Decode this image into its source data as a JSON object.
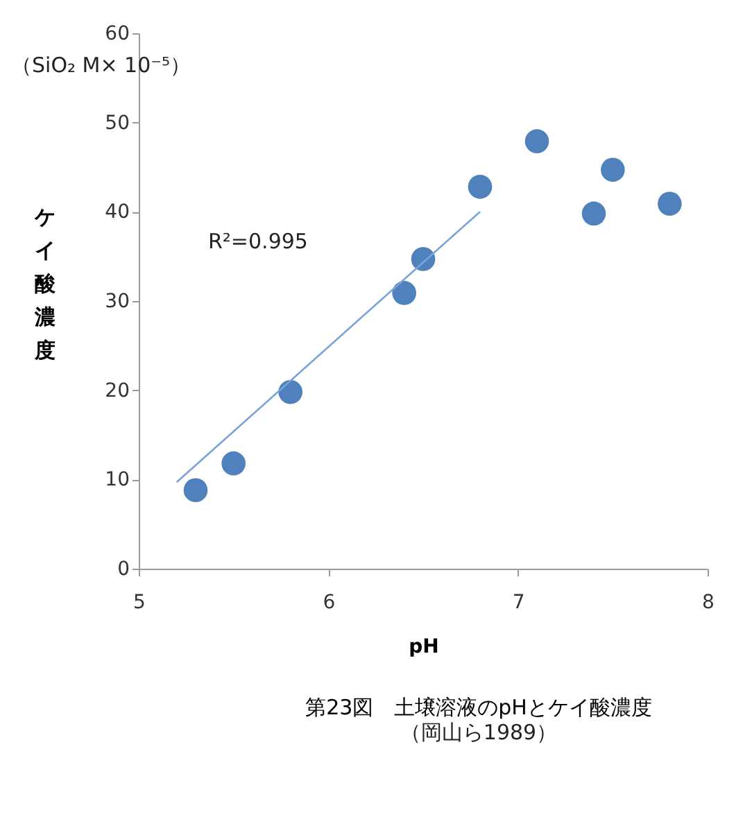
{
  "chart_data": {
    "type": "scatter",
    "title": "第23図　土壌溶液のpHとケイ酸濃度",
    "subtitle": "（岡山ら1989）",
    "xlabel": "pH",
    "ylabel": "ケイ酸濃度",
    "annotations": [
      "（SiO₂ M× 10⁻⁵）",
      "R²=0.995"
    ],
    "series": [
      {
        "color": "#4f81bd",
        "marker": "circle",
        "x": [
          5.3,
          5.5,
          5.8,
          6.4,
          6.5,
          6.8,
          7.1,
          7.4,
          7.5,
          7.8
        ],
        "values": [
          8.8,
          11.8,
          19.8,
          30.9,
          34.7,
          42.8,
          47.9,
          39.8,
          44.7,
          40.9
        ]
      },
      {
        "type": "line",
        "color": "#7ba3d9",
        "x": [
          5.2,
          6.8
        ],
        "values": [
          9.7,
          40.0
        ]
      }
    ],
    "xlim": [
      5,
      8
    ],
    "xticks": [
      5,
      6,
      7,
      8
    ],
    "ylim": [
      0,
      60
    ],
    "yticks": [
      0,
      10,
      20,
      30,
      40,
      50,
      60
    ],
    "grid": false,
    "line_style": "solid"
  }
}
